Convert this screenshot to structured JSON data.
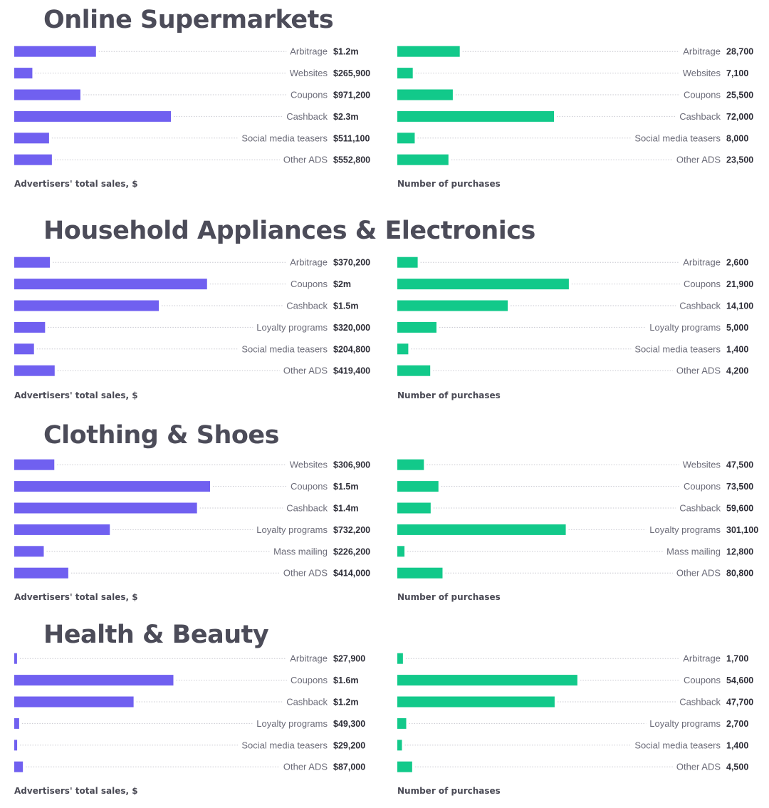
{
  "colors": {
    "sales": "#7060f0",
    "purchases": "#12c98a",
    "title": "#4c4c59",
    "leader": "#c8c8d0"
  },
  "chart_data": [
    {
      "type": "bar",
      "panel": "Online Supermarkets — sales",
      "title": "Online Supermarkets",
      "xlabel": "Advertisers' total sales, $",
      "categories": [
        "Arbitrage",
        "Websites",
        "Coupons",
        "Cashback",
        "Social media teasers",
        "Other ADS"
      ],
      "values": [
        1200000,
        265900,
        971200,
        2300000,
        511100,
        552800
      ],
      "labels": [
        "$1.2m",
        "$265,900",
        "$971,200",
        "$2.3m",
        "$511,100",
        "$552,800"
      ],
      "xlim": [
        0,
        4600000
      ]
    },
    {
      "type": "bar",
      "panel": "Online Supermarkets — purchases",
      "xlabel": "Number of purchases",
      "categories": [
        "Arbitrage",
        "Websites",
        "Coupons",
        "Cashback",
        "Social media teasers",
        "Other ADS"
      ],
      "values": [
        28700,
        7100,
        25500,
        72000,
        8000,
        23500
      ],
      "labels": [
        "28,700",
        "7,100",
        "25,500",
        "72,000",
        "8,000",
        "23,500"
      ],
      "xlim": [
        0,
        144000
      ]
    },
    {
      "type": "bar",
      "panel": "Household Appliances & Electronics — sales",
      "title": "Household Appliances & Electronics",
      "xlabel": "Advertisers' total sales, $",
      "categories": [
        "Arbitrage",
        "Coupons",
        "Cashback",
        "Loyalty programs",
        "Social media teasers",
        "Other ADS"
      ],
      "values": [
        370200,
        2000000,
        1500000,
        320000,
        204800,
        419400
      ],
      "labels": [
        "$370,200",
        "$2m",
        "$1.5m",
        "$320,000",
        "$204,800",
        "$419,400"
      ],
      "xlim": [
        0,
        3250000
      ]
    },
    {
      "type": "bar",
      "panel": "Household Appliances & Electronics — purchases",
      "xlabel": "Number of purchases",
      "categories": [
        "Arbitrage",
        "Coupons",
        "Cashback",
        "Loyalty programs",
        "Social media teasers",
        "Other ADS"
      ],
      "values": [
        2600,
        21900,
        14100,
        5000,
        1400,
        4200
      ],
      "labels": [
        "2,600",
        "21,900",
        "14,100",
        "5,000",
        "1,400",
        "4,200"
      ],
      "xlim": [
        0,
        40000
      ]
    },
    {
      "type": "bar",
      "panel": "Clothing & Shoes — sales",
      "title": "Clothing & Shoes",
      "xlabel": "Advertisers' total sales, $",
      "categories": [
        "Websites",
        "Coupons",
        "Cashback",
        "Loyalty programs",
        "Mass mailing",
        "Other ADS"
      ],
      "values": [
        306900,
        1500000,
        1400000,
        732200,
        226200,
        414000
      ],
      "labels": [
        "$306,900",
        "$1.5m",
        "$1.4m",
        "$732,200",
        "$226,200",
        "$414,000"
      ],
      "xlim": [
        0,
        2400000
      ]
    },
    {
      "type": "bar",
      "panel": "Clothing & Shoes — purchases",
      "xlabel": "Number of purchases",
      "categories": [
        "Websites",
        "Coupons",
        "Cashback",
        "Loyalty programs",
        "Mass mailing",
        "Other ADS"
      ],
      "values": [
        47500,
        73500,
        59600,
        301100,
        12800,
        80800
      ],
      "labels": [
        "47,500",
        "73,500",
        "59,600",
        "301,100",
        "12,800",
        "80,800"
      ],
      "xlim": [
        0,
        560000
      ]
    },
    {
      "type": "bar",
      "panel": "Health & Beauty — sales",
      "title": "Health & Beauty",
      "xlabel": "Advertisers' total sales, $",
      "categories": [
        "Arbitrage",
        "Coupons",
        "Cashback",
        "Loyalty programs",
        "Social media teasers",
        "Other ADS"
      ],
      "values": [
        27900,
        1600000,
        1200000,
        49300,
        29200,
        87000
      ],
      "labels": [
        "$27,900",
        "$1.6m",
        "$1.2m",
        "$49,300",
        "$29,200",
        "$87,000"
      ],
      "xlim": [
        0,
        3150000
      ]
    },
    {
      "type": "bar",
      "panel": "Health & Beauty — purchases",
      "xlabel": "Number of purchases",
      "categories": [
        "Arbitrage",
        "Coupons",
        "Cashback",
        "Loyalty programs",
        "Social media teasers",
        "Other ADS"
      ],
      "values": [
        1700,
        54600,
        47700,
        2700,
        1400,
        4500
      ],
      "labels": [
        "1,700",
        "54,600",
        "47,700",
        "2,700",
        "1,400",
        "4,500"
      ],
      "xlim": [
        0,
        95000
      ]
    }
  ]
}
